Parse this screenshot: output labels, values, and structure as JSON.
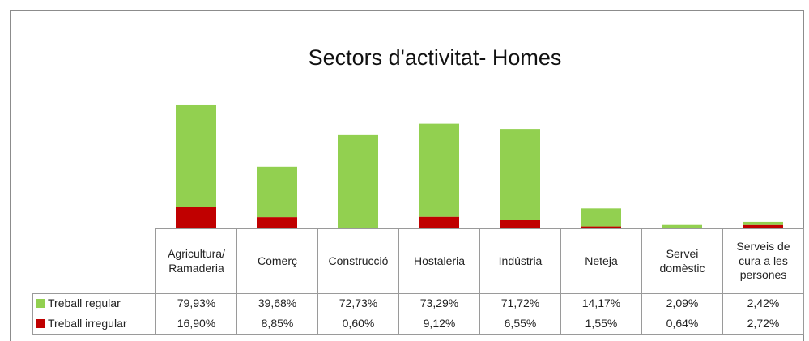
{
  "chart_data": {
    "type": "stacked_bar_with_table",
    "title": "Sectors d'activitat- Homes",
    "categories": [
      "Agricultura/ Ramaderia",
      "Comerç",
      "Construcció",
      "Hostaleria",
      "Indústria",
      "Neteja",
      "Servei domèstic",
      "Serveis de cura a les persones"
    ],
    "series": [
      {
        "name": "Treball regular",
        "color": "#92d050",
        "values": [
          79.93,
          39.68,
          72.73,
          73.29,
          71.72,
          14.17,
          2.09,
          2.42
        ],
        "value_labels": [
          "79,93%",
          "39,68%",
          "72,73%",
          "73,29%",
          "71,72%",
          "14,17%",
          "2,09%",
          "2,42%"
        ]
      },
      {
        "name": "Treball irregular",
        "color": "#c00000",
        "values": [
          16.9,
          8.85,
          0.6,
          9.12,
          6.55,
          1.55,
          0.64,
          2.72
        ],
        "value_labels": [
          "16,90%",
          "8,85%",
          "0,60%",
          "9,12%",
          "6,55%",
          "1,55%",
          "0,64%",
          "2,72%"
        ]
      }
    ],
    "ylim": [
      0,
      100
    ]
  }
}
